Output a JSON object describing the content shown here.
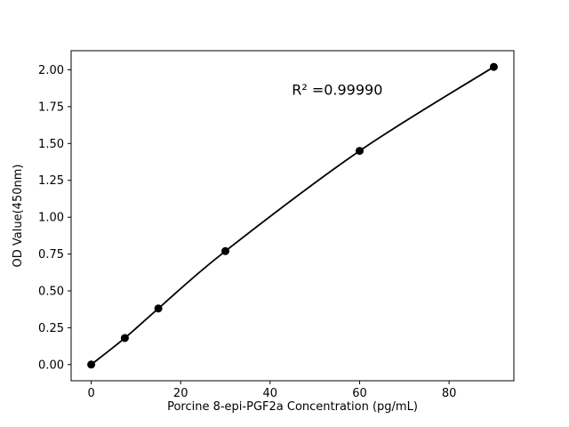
{
  "figure": {
    "background": "#ffffff",
    "foreground": "#000000"
  },
  "chart_data": {
    "type": "line",
    "x": [
      0,
      7.5,
      15,
      30,
      60,
      90
    ],
    "y": [
      0.0,
      0.18,
      0.38,
      0.77,
      1.45,
      2.02
    ],
    "title": "",
    "xlabel": "Porcine 8-epi-PGF2a Concentration (pg/mL)",
    "ylabel": "OD Value(450nm)",
    "xlim": [
      -4.5,
      94.5
    ],
    "ylim": [
      -0.11,
      2.13
    ],
    "xticks": [
      0,
      20,
      40,
      60,
      80
    ],
    "yticks": [
      0.0,
      0.25,
      0.5,
      0.75,
      1.0,
      1.25,
      1.5,
      1.75,
      2.0
    ],
    "ytick_decimals": 2,
    "grid": false,
    "legend": null,
    "line_color": "#000000",
    "marker": {
      "shape": "circle",
      "color": "#000000",
      "radius_px": 4.5
    },
    "annotation": {
      "text": "R² =0.99990",
      "x_data": 55,
      "y_data": 1.86
    }
  }
}
